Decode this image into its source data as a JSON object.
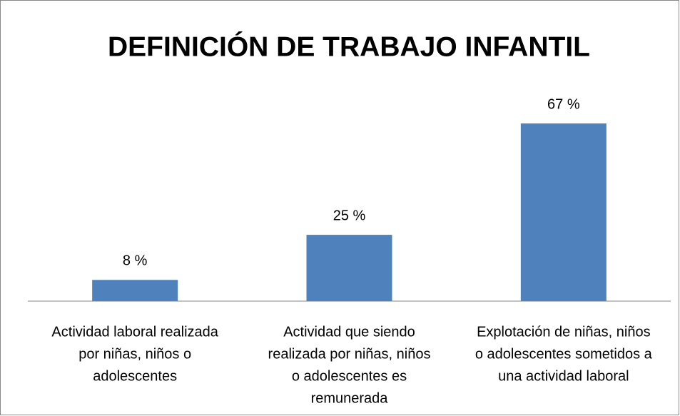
{
  "chart_data": {
    "type": "bar",
    "title": "DEFINICIÓN DE TRABAJO INFANTIL",
    "categories": [
      [
        "Actividad laboral realizada",
        "por niñas, niños o",
        "adolescentes"
      ],
      [
        "Actividad que siendo",
        "realizada por  niñas, niños",
        "o adolescentes es",
        "remunerada"
      ],
      [
        "Explotación de  niñas, niños",
        "o adolescentes sometidos a",
        "una actividad laboral"
      ]
    ],
    "values": [
      8,
      25,
      67
    ],
    "value_labels": [
      "8 %",
      "25 %",
      "67 %"
    ],
    "color": "#4f81bd"
  }
}
